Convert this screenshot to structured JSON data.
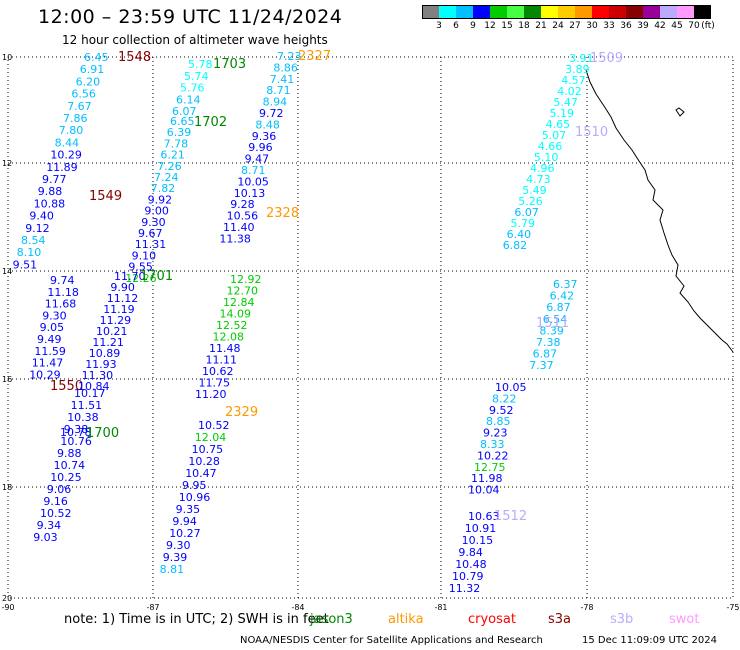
{
  "header": {
    "title": "12:00 – 23:59 UTC 11/24/2024",
    "subtitle": "12 hour collection of altimeter wave heights"
  },
  "legend": {
    "colors": [
      "#808080",
      "#00ffff",
      "#00bfff",
      "#0000ff",
      "#00cc00",
      "#44ff44",
      "#008800",
      "#ffff00",
      "#ffcc00",
      "#ff9900",
      "#ff0000",
      "#cc0000",
      "#880000",
      "#990099",
      "#bbaaff",
      "#ff99ff",
      "#000000"
    ],
    "labels": [
      "3",
      "6",
      "9",
      "12",
      "15",
      "18",
      "21",
      "24",
      "27",
      "30",
      "33",
      "36",
      "39",
      "42",
      "45",
      "70"
    ],
    "unit": "(ft)"
  },
  "axes": {
    "lat_labels": [
      "10",
      "12",
      "14",
      "16",
      "18",
      "20"
    ],
    "lon_labels": [
      "-90",
      "-87",
      "-84",
      "-81",
      "-78",
      "-75"
    ]
  },
  "tracks": [
    {
      "pass": "1548",
      "label_color": "#880000",
      "heights": [
        "6.45",
        "6.91",
        "6.20",
        "6.56",
        "7.67",
        "7.86",
        "7.80",
        "8.44",
        "10.29",
        "11.89",
        "9.77",
        "9.88",
        "10.88",
        "9.40",
        "9.12",
        "8.54",
        "8.10",
        "9.51"
      ]
    },
    {
      "pass": "1549",
      "label_color": "#880000",
      "heights": [
        "9.74",
        "11.18",
        "11.68",
        "9.30",
        "9.05",
        "9.49",
        "11.59",
        "11.47",
        "10.29"
      ]
    },
    {
      "pass": "1550",
      "label_color": "#880000",
      "heights": [
        "10.17",
        "11.51",
        "10.38",
        "9.38",
        "10.76",
        "9.88",
        "10.74",
        "10.25",
        "9.06",
        "9.16",
        "10.52",
        "9.34",
        "9.03"
      ]
    },
    {
      "pass": "1703",
      "label_color": "#008800",
      "heights": [
        "5.78",
        "5.74",
        "5.76",
        "6.14",
        "6.07"
      ]
    },
    {
      "pass": "1702",
      "label_color": "#008800",
      "heights": [
        "6.65",
        "6.39",
        "7.78",
        "6.21",
        "7.26",
        "7.24",
        "7.82",
        "9.92",
        "9.00",
        "9.30",
        "9.67",
        "11.31",
        "9.10",
        "9.55",
        "12.26"
      ]
    },
    {
      "pass": "1701",
      "label_color": "#008800",
      "heights": [
        "11.70",
        "9.90",
        "11.12",
        "11.19",
        "11.29",
        "10.21",
        "11.21",
        "10.89",
        "11.93",
        "11.30",
        "10.84"
      ]
    },
    {
      "pass": "1700",
      "label_color": "#008800",
      "heights": [
        "10.78"
      ]
    },
    {
      "pass": "2327",
      "label_color": "#ff9900",
      "heights": [
        "7.23",
        "8.86",
        "7.41",
        "8.71",
        "8.94",
        "9.72",
        "8.48",
        "9.36",
        "9.96",
        "9.47",
        "8.71",
        "10.05",
        "10.13",
        "9.28",
        "10.56",
        "11.40",
        "11.38"
      ]
    },
    {
      "pass": "2328",
      "label_color": "#ff9900",
      "heights": [
        "12.92",
        "12.70",
        "12.84",
        "14.09",
        "12.52",
        "12.08",
        "11.48",
        "11.11",
        "10.62",
        "11.75",
        "11.20"
      ]
    },
    {
      "pass": "2329",
      "label_color": "#ff9900",
      "heights": [
        "10.52",
        "12.04",
        "10.75",
        "10.28",
        "10.47",
        "9.95",
        "10.96",
        "9.35",
        "9.94",
        "10.27",
        "9.30",
        "9.39",
        "8.81"
      ]
    },
    {
      "pass": "1509",
      "label_color": "#bbaaff",
      "heights": [
        "3.91",
        "3.89",
        "4.57",
        "4.02",
        "5.47",
        "5.19",
        "4.65",
        "5.07",
        "4.66",
        "5.10",
        "4.96",
        "4.73",
        "5.49",
        "5.26",
        "6.07",
        "5.79",
        "6.40",
        "6.82"
      ]
    },
    {
      "pass": "1510",
      "label_color": "#bbaaff",
      "heights": [
        "6.37",
        "6.42",
        "6.87",
        "6.54",
        "8.39",
        "7.38",
        "6.87",
        "7.37"
      ]
    },
    {
      "pass": "1511",
      "label_color": "#bbaaff",
      "heights": [
        "10.05",
        "8.22",
        "9.52",
        "8.85",
        "9.23",
        "8.33",
        "10.22",
        "12.75",
        "11.98",
        "10.04"
      ]
    },
    {
      "pass": "1512",
      "label_color": "#bbaaff",
      "heights": [
        "10.63",
        "10.91",
        "10.15",
        "9.84",
        "10.48",
        "10.79",
        "11.32"
      ]
    }
  ],
  "footer": {
    "note": "note:  1) Time is in UTC; 2) SWH is in feet",
    "satellites": [
      {
        "name": "jason3",
        "color": "#008800"
      },
      {
        "name": "altika",
        "color": "#ff9900"
      },
      {
        "name": "cryosat",
        "color": "#ff0000"
      },
      {
        "name": "s3a",
        "color": "#880000"
      },
      {
        "name": "s3b",
        "color": "#bbaaff"
      },
      {
        "name": "swot",
        "color": "#ff99ff"
      }
    ],
    "credit": "NOAA/NESDIS Center for Satellite Applications and Research",
    "timestamp": "15 Dec 11:09:09 UTC 2024"
  }
}
